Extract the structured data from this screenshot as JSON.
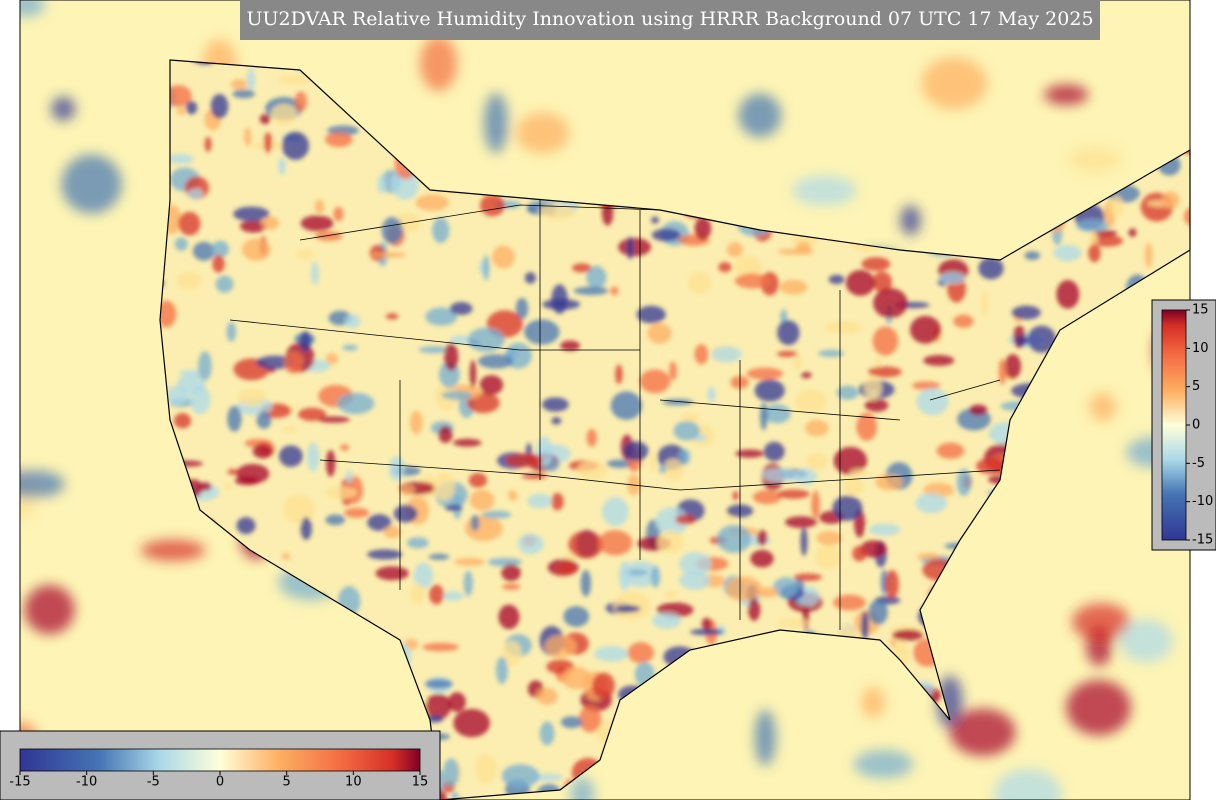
{
  "title": "UU2DVAR Relative Humidity Innovation using HRRR Background 07 UTC 17 May 2025",
  "colorbar_bottom": {
    "ticks": [
      -15,
      -10,
      -5,
      0,
      5,
      10,
      15
    ]
  },
  "colorbar_right": {
    "ticks": [
      15,
      10,
      5,
      0,
      -5,
      -10,
      -15
    ]
  }
}
